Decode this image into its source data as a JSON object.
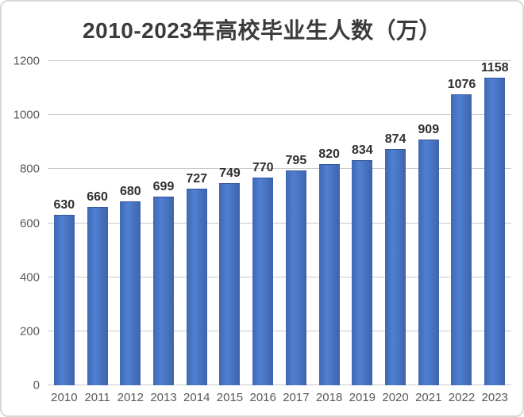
{
  "chart_data": {
    "type": "bar",
    "title": "2010-2023年高校毕业生人数（万）",
    "categories": [
      "2010",
      "2011",
      "2012",
      "2013",
      "2014",
      "2015",
      "2016",
      "2017",
      "2018",
      "2019",
      "2020",
      "2021",
      "2022",
      "2023"
    ],
    "values": [
      630,
      660,
      680,
      699,
      727,
      749,
      770,
      795,
      820,
      834,
      874,
      909,
      1076,
      1158
    ],
    "xlabel": "",
    "ylabel": "",
    "ylim": [
      0,
      1200
    ],
    "yticks": [
      0,
      200,
      400,
      600,
      800,
      1000,
      1200
    ],
    "grid": true,
    "legend": "none",
    "colors": {
      "bar": "#4472c4",
      "bar_gradient_edge": "#3e64ab",
      "bar_gradient_mid": "#5080d2",
      "gridline": "#c9c9c9",
      "tick_label": "#595959",
      "value_label": "#2f2f2f",
      "title": "#3b3b3b",
      "frame_border": "#d9d9d9",
      "background": "#ffffff"
    }
  }
}
